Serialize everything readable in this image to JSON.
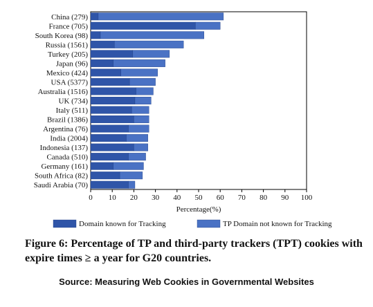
{
  "chart_data": {
    "type": "bar",
    "orientation": "horizontal",
    "stacked": true,
    "categories": [
      "China (279)",
      "France (705)",
      "South Korea (98)",
      "Russia (1561)",
      "Turkey (205)",
      "Japan (96)",
      "Mexico (424)",
      "USA (5377)",
      "Australia (1516)",
      "UK (734)",
      "Italy (511)",
      "Brazil (1386)",
      "Argentina (76)",
      "India (2004)",
      "Indonesia (137)",
      "Canada (510)",
      "Germany (161)",
      "South Africa (82)",
      "Saudi Arabia (70)"
    ],
    "series": [
      {
        "name": "Domain known for Tracking",
        "color": "#2f55a8",
        "values": [
          3.5,
          48.5,
          4.5,
          11,
          19.5,
          10.5,
          14,
          18,
          21,
          20.5,
          19,
          20,
          17.5,
          16.5,
          20,
          17.5,
          10.5,
          13.5,
          17.5
        ]
      },
      {
        "name": "TP Domain not known for Tracking",
        "color": "#4a72c4",
        "values": [
          58,
          11.5,
          48,
          32,
          17,
          24,
          17,
          12,
          8,
          7.5,
          8,
          7,
          9.5,
          10,
          6.5,
          8,
          14,
          10.5,
          3
        ]
      }
    ],
    "xlabel": "Percentage(%)",
    "ylabel": "",
    "xlim": [
      0,
      100
    ],
    "xticks": [
      "0",
      "10",
      "20",
      "30",
      "40",
      "50",
      "60",
      "70",
      "80",
      "90",
      "100"
    ],
    "legend_position": "bottom",
    "grid": false
  },
  "caption": "Figure 6: Percentage of TP and third-party trackers (TPT) cookies with expire times ≥ a year for G20 countries.",
  "source": "Source: Measuring Web Cookies in Governmental Websites"
}
